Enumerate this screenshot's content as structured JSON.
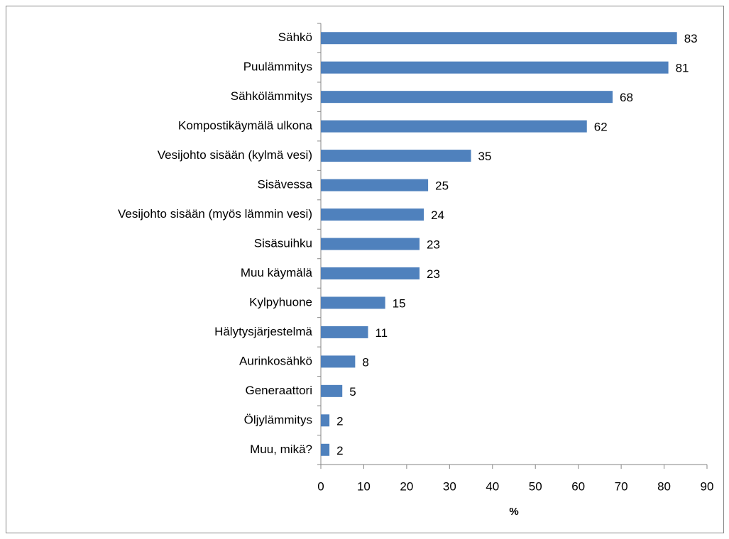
{
  "chart_data": {
    "type": "bar",
    "orientation": "horizontal",
    "categories": [
      "Sähkö",
      "Puulämmitys",
      "Sähkölämmitys",
      "Kompostikäymälä ulkona",
      "Vesijohto sisään (kylmä vesi)",
      "Sisävessa",
      "Vesijohto sisään (myös lämmin vesi)",
      "Sisäsuihku",
      "Muu käymälä",
      "Kylpyhuone",
      "Hälytysjärjestelmä",
      "Aurinkosähkö",
      "Generaattori",
      "Öljylämmitys",
      "Muu, mikä?"
    ],
    "values": [
      83,
      81,
      68,
      62,
      35,
      25,
      24,
      23,
      23,
      15,
      11,
      8,
      5,
      2,
      2
    ],
    "color": "#4f81bd",
    "xlabel": "%",
    "xlim": [
      0,
      90
    ],
    "xticks": [
      0,
      10,
      20,
      30,
      40,
      50,
      60,
      70,
      80,
      90
    ],
    "grid": false
  }
}
